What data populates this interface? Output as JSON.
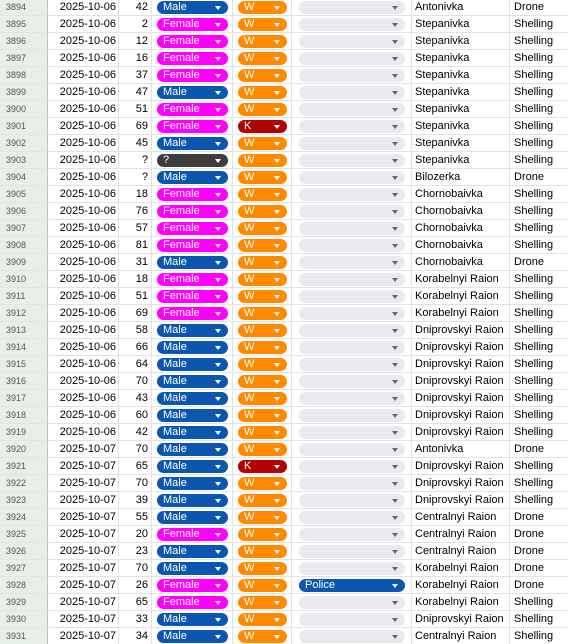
{
  "table": {
    "rows": [
      [
        3894,
        "2025-10-06",
        42,
        "Male",
        "W",
        null,
        "Antonivka",
        "Drone"
      ],
      [
        3895,
        "2025-10-06",
        2,
        "Female",
        "W",
        null,
        "Stepanivka",
        "Shelling"
      ],
      [
        3896,
        "2025-10-06",
        12,
        "Female",
        "W",
        null,
        "Stepanivka",
        "Shelling"
      ],
      [
        3897,
        "2025-10-06",
        16,
        "Female",
        "W",
        null,
        "Stepanivka",
        "Shelling"
      ],
      [
        3898,
        "2025-10-06",
        37,
        "Female",
        "W",
        null,
        "Stepanivka",
        "Shelling"
      ],
      [
        3899,
        "2025-10-06",
        47,
        "Male",
        "W",
        null,
        "Stepanivka",
        "Shelling"
      ],
      [
        3900,
        "2025-10-06",
        51,
        "Female",
        "W",
        null,
        "Stepanivka",
        "Shelling"
      ],
      [
        3901,
        "2025-10-06",
        69,
        "Female",
        "K",
        null,
        "Stepanivka",
        "Shelling"
      ],
      [
        3902,
        "2025-10-06",
        45,
        "Male",
        "W",
        null,
        "Stepanivka",
        "Shelling"
      ],
      [
        3903,
        "2025-10-06",
        "?",
        "?",
        "W",
        null,
        "Stepanivka",
        "Shelling"
      ],
      [
        3904,
        "2025-10-06",
        "?",
        "Male",
        "W",
        null,
        "Bilozerka",
        "Drone"
      ],
      [
        3905,
        "2025-10-06",
        18,
        "Female",
        "W",
        null,
        "Chornobaivka",
        "Shelling"
      ],
      [
        3906,
        "2025-10-06",
        76,
        "Female",
        "W",
        null,
        "Chornobaivka",
        "Shelling"
      ],
      [
        3907,
        "2025-10-06",
        57,
        "Female",
        "W",
        null,
        "Chornobaivka",
        "Shelling"
      ],
      [
        3908,
        "2025-10-06",
        81,
        "Female",
        "W",
        null,
        "Chornobaivka",
        "Shelling"
      ],
      [
        3909,
        "2025-10-06",
        31,
        "Male",
        "W",
        null,
        "Chornobaivka",
        "Drone"
      ],
      [
        3910,
        "2025-10-06",
        18,
        "Female",
        "W",
        null,
        "Korabelnyi Raion",
        "Shelling"
      ],
      [
        3911,
        "2025-10-06",
        51,
        "Female",
        "W",
        null,
        "Korabelnyi Raion",
        "Shelling"
      ],
      [
        3912,
        "2025-10-06",
        69,
        "Female",
        "W",
        null,
        "Korabelnyi Raion",
        "Shelling"
      ],
      [
        3913,
        "2025-10-06",
        58,
        "Male",
        "W",
        null,
        "Dniprovskyi Raion",
        "Shelling"
      ],
      [
        3914,
        "2025-10-06",
        66,
        "Male",
        "W",
        null,
        "Dniprovskyi Raion",
        "Shelling"
      ],
      [
        3915,
        "2025-10-06",
        64,
        "Male",
        "W",
        null,
        "Dniprovskyi Raion",
        "Shelling"
      ],
      [
        3916,
        "2025-10-06",
        70,
        "Male",
        "W",
        null,
        "Dniprovskyi Raion",
        "Shelling"
      ],
      [
        3917,
        "2025-10-06",
        43,
        "Male",
        "W",
        null,
        "Dniprovskyi Raion",
        "Shelling"
      ],
      [
        3918,
        "2025-10-06",
        60,
        "Male",
        "W",
        null,
        "Dniprovskyi Raion",
        "Shelling"
      ],
      [
        3919,
        "2025-10-06",
        42,
        "Male",
        "W",
        null,
        "Dniprovskyi Raion",
        "Shelling"
      ],
      [
        3920,
        "2025-10-07",
        70,
        "Male",
        "W",
        null,
        "Antonivka",
        "Drone"
      ],
      [
        3921,
        "2025-10-07",
        65,
        "Male",
        "K",
        null,
        "Dniprovskyi Raion",
        "Shelling"
      ],
      [
        3922,
        "2025-10-07",
        70,
        "Male",
        "W",
        null,
        "Dniprovskyi Raion",
        "Shelling"
      ],
      [
        3923,
        "2025-10-07",
        39,
        "Male",
        "W",
        null,
        "Dniprovskyi Raion",
        "Shelling"
      ],
      [
        3924,
        "2025-10-07",
        55,
        "Male",
        "W",
        null,
        "Centralnyi Raion",
        "Drone"
      ],
      [
        3925,
        "2025-10-07",
        20,
        "Female",
        "W",
        null,
        "Centralnyi Raion",
        "Drone"
      ],
      [
        3926,
        "2025-10-07",
        23,
        "Male",
        "W",
        null,
        "Centralnyi Raion",
        "Drone"
      ],
      [
        3927,
        "2025-10-07",
        70,
        "Male",
        "W",
        null,
        "Korabelnyi Raion",
        "Drone"
      ],
      [
        3928,
        "2025-10-07",
        26,
        "Female",
        "W",
        "Police",
        "Korabelnyi Raion",
        "Drone"
      ],
      [
        3929,
        "2025-10-07",
        65,
        "Female",
        "W",
        null,
        "Korabelnyi Raion",
        "Shelling"
      ],
      [
        3930,
        "2025-10-07",
        33,
        "Male",
        "W",
        null,
        "Dniprovskyi Raion",
        "Shelling"
      ],
      [
        3931,
        "2025-10-07",
        34,
        "Male",
        "W",
        null,
        "Centralnyi Raion",
        "Shelling"
      ]
    ]
  }
}
